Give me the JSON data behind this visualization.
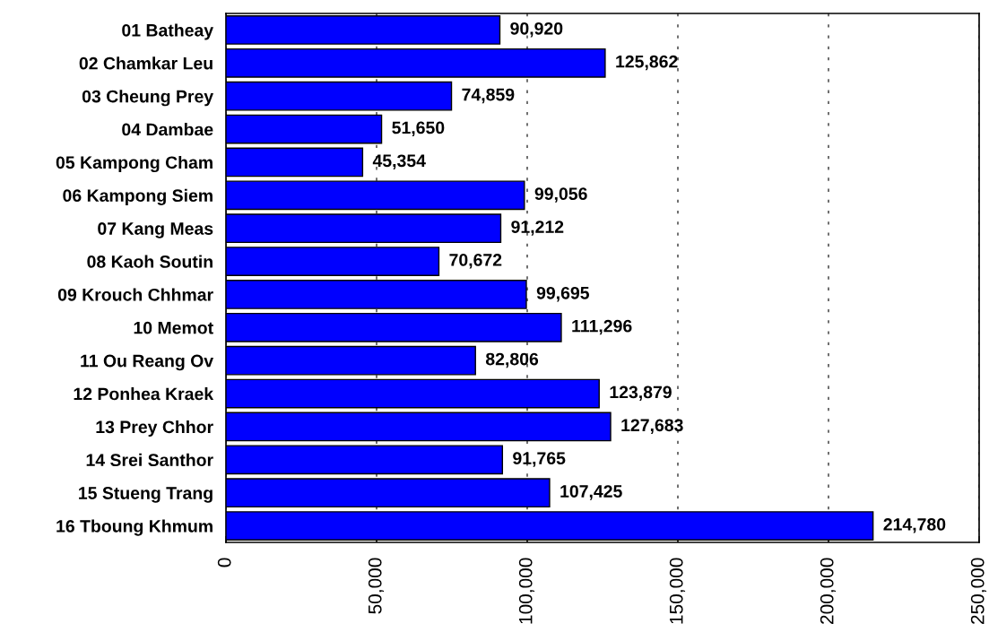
{
  "chart_data": {
    "type": "bar",
    "orientation": "horizontal",
    "categories": [
      "01 Batheay",
      "02 Chamkar Leu",
      "03 Cheung Prey",
      "04 Dambae",
      "05 Kampong Cham",
      "06 Kampong Siem",
      "07 Kang Meas",
      "08 Kaoh Soutin",
      "09 Krouch Chhmar",
      "10 Memot",
      "11 Ou Reang Ov",
      "12 Ponhea Kraek",
      "13 Prey Chhor",
      "14 Srei Santhor",
      "15 Stueng Trang",
      "16 Tboung Khmum"
    ],
    "values": [
      90920,
      125862,
      74859,
      51650,
      45354,
      99056,
      91212,
      70672,
      99695,
      111296,
      82806,
      123879,
      127683,
      91765,
      107425,
      214780
    ],
    "value_labels": [
      "90,920",
      "125,862",
      "74,859",
      "51,650",
      "45,354",
      "99,056",
      "91,212",
      "70,672",
      "99,695",
      "111,296",
      "82,806",
      "123,879",
      "127,683",
      "91,765",
      "107,425",
      "214,780"
    ],
    "color": "#0000ff",
    "xlim": [
      0,
      250000
    ],
    "xticks": [
      0,
      {
        "value": 50000,
        "label": "50,000"
      },
      {
        "value": 100000,
        "label": "100,000"
      },
      {
        "value": 150000,
        "label": "150,000"
      },
      {
        "value": 200000,
        "label": "200,000"
      },
      {
        "value": 250000,
        "label": "250,000"
      }
    ],
    "grid": "x",
    "legend": false
  }
}
